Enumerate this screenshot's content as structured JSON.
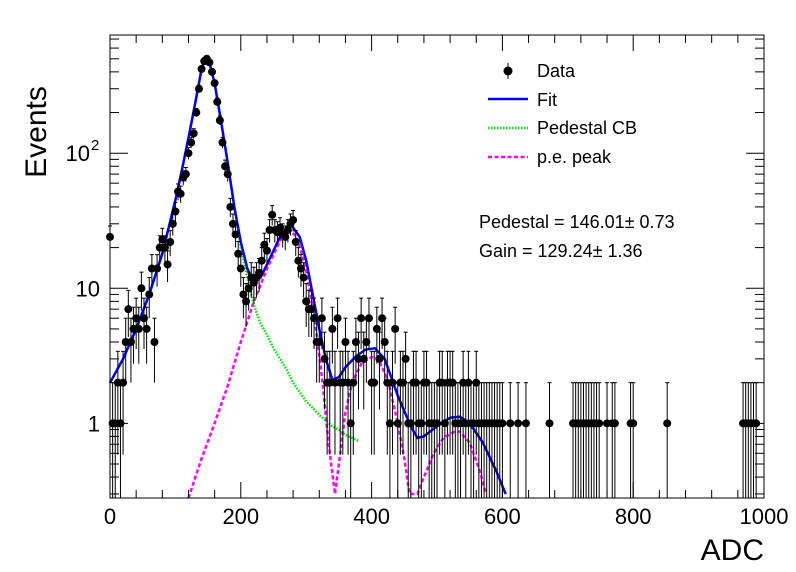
{
  "chart_data": {
    "type": "scatter",
    "xlabel": "ADC",
    "ylabel": "Events",
    "xlim": [
      0,
      1000
    ],
    "ylim": [
      0.28,
      750
    ],
    "ylog": true,
    "grid": false,
    "legend_position": "top-right",
    "x_ticks": [
      {
        "value": 0,
        "label": "0"
      },
      {
        "value": 200,
        "label": "200"
      },
      {
        "value": 400,
        "label": "400"
      },
      {
        "value": 600,
        "label": "600"
      },
      {
        "value": 800,
        "label": "800"
      },
      {
        "value": 1000,
        "label": "1000"
      }
    ],
    "y_ticks": [
      {
        "value": 1,
        "label": "1"
      },
      {
        "value": 10,
        "label": "10"
      },
      {
        "value": 100,
        "label": "10",
        "exponent": "2"
      }
    ],
    "legend": [
      {
        "key": "data",
        "label": "Data",
        "style": "marker",
        "color": "#000000"
      },
      {
        "key": "fit",
        "label": "Fit",
        "style": "solid",
        "color": "#0000ff"
      },
      {
        "key": "pedestal",
        "label": "Pedestal CB",
        "style": "dotted",
        "color": "#00dd00"
      },
      {
        "key": "pe",
        "label": "p.e. peak",
        "style": "dashed",
        "color": "#ff00ff"
      }
    ],
    "annotations": [
      {
        "key": "pedestal",
        "text": "Pedestal = 146.01± 0.73"
      },
      {
        "key": "gain",
        "text": "Gain = 129.24± 1.36"
      }
    ],
    "series": [
      {
        "name": "Data",
        "points": [
          [
            0,
            24
          ],
          [
            4,
            1
          ],
          [
            8,
            1
          ],
          [
            12,
            2
          ],
          [
            16,
            1
          ],
          [
            20,
            2
          ],
          [
            24,
            4
          ],
          [
            28,
            7
          ],
          [
            32,
            4
          ],
          [
            36,
            5
          ],
          [
            40,
            6
          ],
          [
            44,
            5
          ],
          [
            48,
            10
          ],
          [
            52,
            6
          ],
          [
            56,
            5
          ],
          [
            60,
            9
          ],
          [
            64,
            14
          ],
          [
            68,
            4
          ],
          [
            72,
            14
          ],
          [
            76,
            20
          ],
          [
            80,
            23
          ],
          [
            84,
            20
          ],
          [
            88,
            15
          ],
          [
            92,
            22
          ],
          [
            96,
            30
          ],
          [
            100,
            37
          ],
          [
            104,
            52
          ],
          [
            108,
            50
          ],
          [
            112,
            66
          ],
          [
            116,
            70
          ],
          [
            120,
            100
          ],
          [
            124,
            120
          ],
          [
            128,
            140
          ],
          [
            132,
            200
          ],
          [
            136,
            300
          ],
          [
            140,
            420
          ],
          [
            144,
            480
          ],
          [
            148,
            500
          ],
          [
            152,
            470
          ],
          [
            156,
            400
          ],
          [
            160,
            330
          ],
          [
            164,
            240
          ],
          [
            168,
            175
          ],
          [
            172,
            120
          ],
          [
            176,
            80
          ],
          [
            180,
            70
          ],
          [
            184,
            40
          ],
          [
            188,
            30
          ],
          [
            192,
            25
          ],
          [
            196,
            18
          ],
          [
            200,
            14
          ],
          [
            204,
            9
          ],
          [
            208,
            8
          ],
          [
            212,
            10
          ],
          [
            216,
            12
          ],
          [
            220,
            11
          ],
          [
            224,
            12
          ],
          [
            228,
            13
          ],
          [
            232,
            16
          ],
          [
            236,
            21
          ],
          [
            240,
            19
          ],
          [
            244,
            27
          ],
          [
            248,
            35
          ],
          [
            252,
            27
          ],
          [
            256,
            26
          ],
          [
            260,
            28
          ],
          [
            264,
            25
          ],
          [
            268,
            24
          ],
          [
            272,
            27
          ],
          [
            276,
            30
          ],
          [
            280,
            32
          ],
          [
            284,
            22
          ],
          [
            288,
            16
          ],
          [
            292,
            14
          ],
          [
            296,
            12
          ],
          [
            300,
            8
          ],
          [
            304,
            7
          ],
          [
            308,
            7
          ],
          [
            312,
            6
          ],
          [
            316,
            4
          ],
          [
            320,
            4
          ],
          [
            324,
            6
          ],
          [
            328,
            3
          ],
          [
            332,
            2
          ],
          [
            336,
            2
          ],
          [
            340,
            5
          ],
          [
            344,
            2
          ],
          [
            348,
            6
          ],
          [
            352,
            2
          ],
          [
            356,
            2
          ],
          [
            360,
            4
          ],
          [
            364,
            2
          ],
          [
            368,
            1
          ],
          [
            372,
            2
          ],
          [
            376,
            4
          ],
          [
            380,
            3
          ],
          [
            384,
            6
          ],
          [
            388,
            3
          ],
          [
            392,
            4
          ],
          [
            396,
            6
          ],
          [
            400,
            2
          ],
          [
            404,
            2
          ],
          [
            408,
            5
          ],
          [
            412,
            3
          ],
          [
            416,
            6
          ],
          [
            420,
            4
          ],
          [
            424,
            2
          ],
          [
            428,
            1
          ],
          [
            432,
            2
          ],
          [
            436,
            5
          ],
          [
            440,
            1
          ],
          [
            444,
            2
          ],
          [
            448,
            2
          ],
          [
            452,
            3
          ],
          [
            456,
            1
          ],
          [
            460,
            1
          ],
          [
            464,
            2
          ],
          [
            468,
            2
          ],
          [
            472,
            1
          ],
          [
            476,
            1
          ],
          [
            480,
            2
          ],
          [
            484,
            2
          ],
          [
            488,
            1
          ],
          [
            492,
            1
          ],
          [
            496,
            1
          ],
          [
            500,
            1
          ],
          [
            504,
            2
          ],
          [
            508,
            2
          ],
          [
            512,
            1
          ],
          [
            516,
            2
          ],
          [
            520,
            2
          ],
          [
            524,
            2
          ],
          [
            528,
            1
          ],
          [
            532,
            1
          ],
          [
            536,
            1
          ],
          [
            540,
            2
          ],
          [
            544,
            1
          ],
          [
            548,
            2
          ],
          [
            552,
            1
          ],
          [
            556,
            1
          ],
          [
            560,
            2
          ],
          [
            564,
            1
          ],
          [
            568,
            1
          ],
          [
            572,
            1
          ],
          [
            576,
            1
          ],
          [
            580,
            1
          ],
          [
            584,
            1
          ],
          [
            588,
            1
          ],
          [
            592,
            1
          ],
          [
            596,
            1
          ],
          [
            600,
            1
          ],
          [
            612,
            1
          ],
          [
            624,
            1
          ],
          [
            636,
            1
          ],
          [
            672,
            1
          ],
          [
            708,
            1
          ],
          [
            712,
            1
          ],
          [
            716,
            1
          ],
          [
            720,
            1
          ],
          [
            724,
            1
          ],
          [
            728,
            1
          ],
          [
            732,
            1
          ],
          [
            736,
            1
          ],
          [
            740,
            1
          ],
          [
            744,
            1
          ],
          [
            748,
            1
          ],
          [
            760,
            1
          ],
          [
            768,
            1
          ],
          [
            772,
            1
          ],
          [
            796,
            1
          ],
          [
            800,
            1
          ],
          [
            852,
            1
          ],
          [
            968,
            1
          ],
          [
            972,
            1
          ],
          [
            976,
            1
          ],
          [
            980,
            1
          ],
          [
            984,
            1
          ],
          [
            988,
            1
          ]
        ]
      },
      {
        "name": "Fit",
        "points": [
          [
            0,
            2
          ],
          [
            20,
            3
          ],
          [
            40,
            5
          ],
          [
            60,
            9
          ],
          [
            80,
            18
          ],
          [
            100,
            45
          ],
          [
            110,
            75
          ],
          [
            120,
            130
          ],
          [
            130,
            230
          ],
          [
            140,
            420
          ],
          [
            146,
            510
          ],
          [
            152,
            470
          ],
          [
            160,
            330
          ],
          [
            170,
            170
          ],
          [
            180,
            85
          ],
          [
            190,
            40
          ],
          [
            200,
            22
          ],
          [
            210,
            14
          ],
          [
            220,
            11
          ],
          [
            230,
            12
          ],
          [
            240,
            15
          ],
          [
            250,
            19
          ],
          [
            260,
            24
          ],
          [
            270,
            28
          ],
          [
            278,
            29
          ],
          [
            290,
            24
          ],
          [
            300,
            16
          ],
          [
            310,
            9
          ],
          [
            320,
            5
          ],
          [
            330,
            3
          ],
          [
            340,
            2.1
          ],
          [
            350,
            2.2
          ],
          [
            360,
            2.6
          ],
          [
            375,
            3.1
          ],
          [
            390,
            3.5
          ],
          [
            405,
            3.6
          ],
          [
            420,
            3
          ],
          [
            440,
            1.6
          ],
          [
            460,
            0.95
          ],
          [
            470,
            0.78
          ],
          [
            480,
            0.8
          ],
          [
            500,
            0.95
          ],
          [
            520,
            1.1
          ],
          [
            535,
            1.12
          ],
          [
            550,
            1.0
          ],
          [
            570,
            0.72
          ],
          [
            590,
            0.45
          ],
          [
            605,
            0.3
          ]
        ]
      },
      {
        "name": "Pedestal CB",
        "points": [
          [
            0,
            2
          ],
          [
            20,
            3
          ],
          [
            40,
            5
          ],
          [
            60,
            9
          ],
          [
            80,
            18
          ],
          [
            100,
            45
          ],
          [
            110,
            75
          ],
          [
            120,
            130
          ],
          [
            130,
            230
          ],
          [
            140,
            420
          ],
          [
            146,
            510
          ],
          [
            152,
            470
          ],
          [
            160,
            330
          ],
          [
            170,
            170
          ],
          [
            180,
            85
          ],
          [
            190,
            40
          ],
          [
            200,
            20
          ],
          [
            210,
            12
          ],
          [
            220,
            7.5
          ],
          [
            230,
            5.5
          ],
          [
            240,
            4.5
          ],
          [
            250,
            3.6
          ],
          [
            260,
            3
          ],
          [
            270,
            2.5
          ],
          [
            280,
            2
          ],
          [
            290,
            1.7
          ],
          [
            300,
            1.45
          ],
          [
            310,
            1.3
          ],
          [
            320,
            1.15
          ],
          [
            330,
            1.05
          ],
          [
            340,
            0.95
          ],
          [
            350,
            0.9
          ],
          [
            360,
            0.82
          ],
          [
            370,
            0.78
          ],
          [
            380,
            0.74
          ]
        ]
      },
      {
        "name": "p.e. peak",
        "points": [
          [
            120,
            0.28
          ],
          [
            140,
            0.55
          ],
          [
            160,
            1
          ],
          [
            180,
            1.9
          ],
          [
            200,
            4
          ],
          [
            220,
            8
          ],
          [
            240,
            14
          ],
          [
            255,
            20
          ],
          [
            265,
            25
          ],
          [
            275,
            27
          ],
          [
            285,
            24
          ],
          [
            295,
            17
          ],
          [
            305,
            10
          ],
          [
            315,
            5
          ],
          [
            325,
            2
          ],
          [
            332,
            0.9
          ],
          [
            338,
            0.5
          ],
          [
            344,
            0.3
          ],
          [
            350,
            0.5
          ],
          [
            360,
            1.2
          ],
          [
            370,
            2
          ],
          [
            385,
            2.8
          ],
          [
            400,
            3.1
          ],
          [
            410,
            3.0
          ],
          [
            425,
            2.1
          ],
          [
            440,
            1.0
          ],
          [
            450,
            0.55
          ],
          [
            458,
            0.3
          ],
          [
            470,
            0.3
          ],
          [
            480,
            0.4
          ],
          [
            495,
            0.6
          ],
          [
            510,
            0.78
          ],
          [
            525,
            0.86
          ],
          [
            535,
            0.87
          ],
          [
            550,
            0.72
          ],
          [
            565,
            0.45
          ],
          [
            575,
            0.3
          ]
        ]
      }
    ]
  }
}
